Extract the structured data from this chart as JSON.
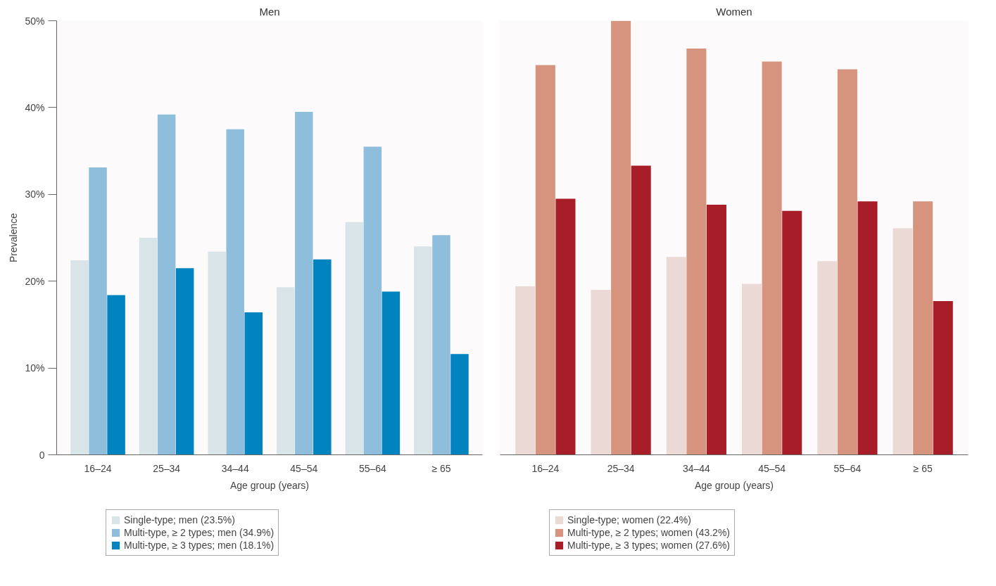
{
  "chart_data": [
    {
      "type": "bar",
      "title": "Men",
      "xlabel": "Age group (years)",
      "ylabel": "Prevalence",
      "categories": [
        "16–24",
        "25–34",
        "34–44",
        "45–54",
        "55–64",
        "≥ 65"
      ],
      "ylim": [
        0,
        50
      ],
      "yticks": [
        0,
        {
          "value": 10,
          "label": "10%"
        },
        {
          "value": 20,
          "label": "20%"
        },
        {
          "value": 30,
          "label": "30%"
        },
        {
          "value": 40,
          "label": "40%"
        },
        {
          "value": 50,
          "label": "50%"
        }
      ],
      "legend": "bottom",
      "series": [
        {
          "name": "Single-type; men (23.5%)",
          "color": "#d9e4e8",
          "values": [
            22.4,
            25.0,
            23.4,
            19.3,
            26.8,
            24.0
          ]
        },
        {
          "name": "Multi-type, ≥ 2 types; men (34.9%)",
          "color": "#8fbedc",
          "values": [
            33.1,
            39.2,
            37.5,
            39.5,
            35.5,
            25.3
          ]
        },
        {
          "name": "Multi-type, ≥ 3 types; men (18.1%)",
          "color": "#0083bf",
          "values": [
            18.4,
            21.5,
            16.4,
            22.5,
            18.8,
            11.6
          ]
        }
      ]
    },
    {
      "type": "bar",
      "title": "Women",
      "xlabel": "Age group (years)",
      "categories": [
        "16–24",
        "25–34",
        "34–44",
        "45–54",
        "55–64",
        "≥ 65"
      ],
      "ylim": [
        0,
        50
      ],
      "legend": "bottom",
      "tick_labels": "x",
      "series": [
        {
          "name": "Single-type; women (22.4%)",
          "color": "#ead9d5",
          "values": [
            19.4,
            19.0,
            22.8,
            19.7,
            22.3,
            26.1
          ]
        },
        {
          "name": "Multi-type, ≥ 2 types; women (43.2%)",
          "color": "#d6937e",
          "values": [
            44.9,
            50.0,
            46.8,
            45.3,
            44.4,
            29.2
          ]
        },
        {
          "name": "Multi-type, ≥ 3 types; women (27.6%)",
          "color": "#a71e28",
          "values": [
            29.5,
            33.3,
            28.8,
            28.1,
            29.2,
            17.7
          ]
        }
      ]
    }
  ]
}
